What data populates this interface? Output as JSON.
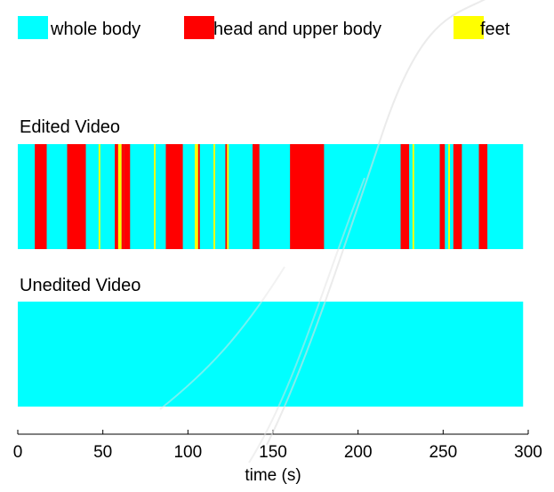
{
  "chart_data": {
    "type": "bar",
    "xlabel": "time (s)",
    "xlim": [
      0,
      300
    ],
    "xticks": [
      0,
      50,
      100,
      150,
      200,
      250,
      300
    ],
    "categories": [
      {
        "key": "whole_body",
        "name": "whole body",
        "color": "#00ffff"
      },
      {
        "key": "head_upper",
        "name": "head and upper body",
        "color": "#ff0000"
      },
      {
        "key": "feet",
        "name": "feet",
        "color": "#ffff00"
      }
    ],
    "panels": [
      {
        "title": "Edited Video",
        "duration": 297,
        "base_category": "whole_body",
        "segments": [
          {
            "start": 10,
            "end": 17,
            "category": "head_upper"
          },
          {
            "start": 29,
            "end": 40,
            "category": "head_upper"
          },
          {
            "start": 47.5,
            "end": 48.5,
            "category": "feet"
          },
          {
            "start": 57,
            "end": 59,
            "category": "head_upper"
          },
          {
            "start": 59,
            "end": 61,
            "category": "feet"
          },
          {
            "start": 61,
            "end": 62.5,
            "category": "head_upper"
          },
          {
            "start": 62.5,
            "end": 66,
            "category": "head_upper"
          },
          {
            "start": 80,
            "end": 81,
            "category": "feet"
          },
          {
            "start": 87,
            "end": 97,
            "category": "head_upper"
          },
          {
            "start": 104,
            "end": 106,
            "category": "feet"
          },
          {
            "start": 106,
            "end": 107,
            "category": "head_upper"
          },
          {
            "start": 115,
            "end": 116,
            "category": "feet"
          },
          {
            "start": 122,
            "end": 123,
            "category": "head_upper"
          },
          {
            "start": 123,
            "end": 124,
            "category": "feet"
          },
          {
            "start": 138,
            "end": 142,
            "category": "head_upper"
          },
          {
            "start": 160,
            "end": 180,
            "category": "head_upper"
          },
          {
            "start": 225,
            "end": 230,
            "category": "head_upper"
          },
          {
            "start": 232,
            "end": 233,
            "category": "feet"
          },
          {
            "start": 248,
            "end": 251,
            "category": "head_upper"
          },
          {
            "start": 253,
            "end": 254,
            "category": "feet"
          },
          {
            "start": 256,
            "end": 261,
            "category": "head_upper"
          },
          {
            "start": 271,
            "end": 276,
            "category": "head_upper"
          }
        ]
      },
      {
        "title": "Unedited Video",
        "duration": 297,
        "base_category": "whole_body",
        "segments": []
      }
    ]
  }
}
